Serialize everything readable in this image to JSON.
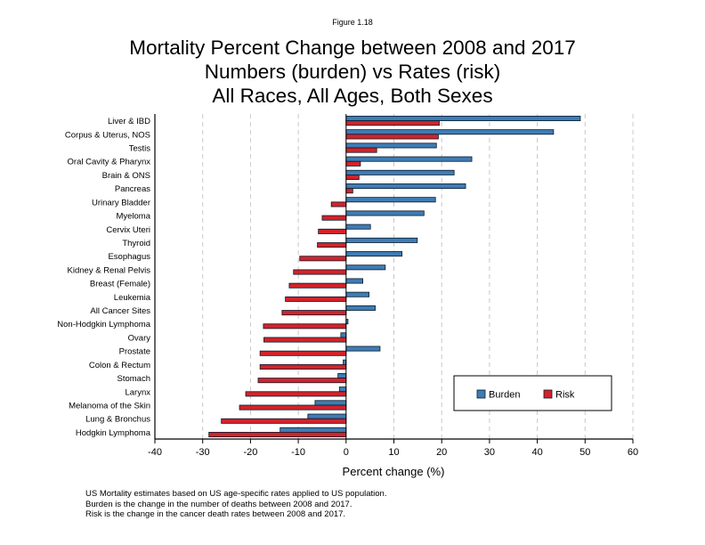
{
  "figure_label": "Figure 1.18",
  "title_lines": [
    "Mortality Percent Change between 2008 and 2017",
    "Numbers (burden) vs Rates (risk)",
    "All Races, All Ages, Both Sexes"
  ],
  "notes": [
    "US Mortality estimates based on US age-specific rates applied to US population.",
    "Burden is the change in the number of deaths between 2008 and 2017.",
    "Risk is the change in the cancer death rates between 2008 and 2017."
  ],
  "colors": {
    "burden": "#3f7cb4",
    "risk": "#d2232a",
    "outline": "#0a1a2a",
    "grid": "#c8c8c8"
  },
  "chart_data": {
    "type": "bar",
    "orientation": "horizontal",
    "title": "Mortality Percent Change between 2008 and 2017",
    "xlabel": "Percent change (%)",
    "ylabel": "",
    "xlim": [
      -40,
      60
    ],
    "xticks": [
      -40,
      -30,
      -20,
      -10,
      0,
      10,
      20,
      30,
      40,
      50,
      60
    ],
    "grid": "vertical dashed",
    "legend_position": "bottom-right",
    "categories": [
      "Liver & IBD",
      "Corpus & Uterus, NOS",
      "Testis",
      "Oral Cavity & Pharynx",
      "Brain & ONS",
      "Pancreas",
      "Urinary Bladder",
      "Myeloma",
      "Cervix Uteri",
      "Thyroid",
      "Esophagus",
      "Kidney & Renal Pelvis",
      "Breast (Female)",
      "Leukemia",
      "All Cancer Sites",
      "Non-Hodgkin Lymphoma",
      "Ovary",
      "Prostate",
      "Colon & Rectum",
      "Stomach",
      "Larynx",
      "Melanoma of the Skin",
      "Lung & Bronchus",
      "Hodgkin Lymphoma"
    ],
    "series": [
      {
        "name": "Burden",
        "values": [
          49.0,
          43.4,
          18.9,
          26.3,
          22.6,
          25.0,
          18.7,
          16.3,
          5.1,
          14.9,
          11.7,
          8.2,
          3.5,
          4.8,
          6.1,
          0.4,
          -1.1,
          7.1,
          -0.6,
          -1.7,
          -1.4,
          -6.5,
          -8.0,
          -13.8
        ]
      },
      {
        "name": "Risk",
        "values": [
          19.5,
          19.3,
          6.4,
          3.0,
          2.7,
          1.4,
          -3.1,
          -5.0,
          -5.8,
          -6.0,
          -9.7,
          -11.0,
          -11.9,
          -12.7,
          -13.4,
          -17.3,
          -17.2,
          -18.0,
          -18.0,
          -18.4,
          -21.0,
          -22.3,
          -26.1,
          -28.7
        ]
      }
    ]
  }
}
